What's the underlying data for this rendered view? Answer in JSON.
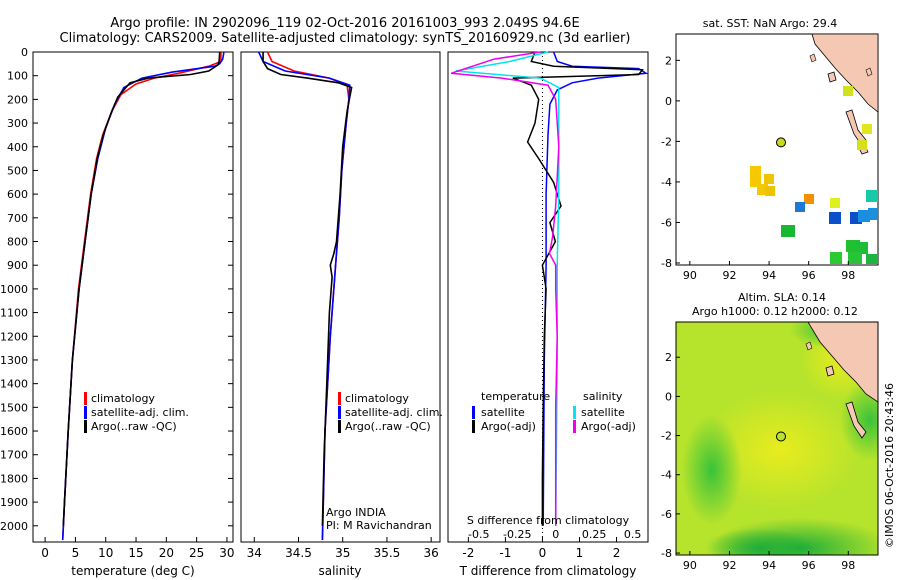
{
  "header": {
    "line1": "Argo profile: IN 2902096_119 02-Oct-2016 20161003_993 2.049S 94.6E",
    "line2": "Climatology: CARS2009. Satellite-adjusted climatology: synTS_20160929.nc (3d earlier)"
  },
  "colors": {
    "clim": "#ff0000",
    "sat": "#0000ff",
    "argo": "#000000",
    "sat_sal": "#00e5ee",
    "argo_sal": "#ee00ee"
  },
  "depth_ticks": [
    "0",
    "100",
    "200",
    "300",
    "400",
    "500",
    "600",
    "700",
    "800",
    "900",
    "1000",
    "1100",
    "1200",
    "1300",
    "1400",
    "1500",
    "1600",
    "1700",
    "1800",
    "1900",
    "2000"
  ],
  "chart_data": [
    {
      "type": "line",
      "name": "temperature",
      "xlabel": "temperature (deg C)",
      "ylabel": "depth",
      "xlim": [
        -2,
        31
      ],
      "ylim": [
        2060,
        0
      ],
      "xticks": [
        "0",
        "5",
        "10",
        "15",
        "20",
        "25",
        "30"
      ],
      "legend": [
        "climatology",
        "satellite-adj. clim.",
        "Argo(..raw -QC)"
      ],
      "series": [
        {
          "name": "climatology",
          "points": [
            [
              29,
              0
            ],
            [
              29,
              40
            ],
            [
              27,
              60
            ],
            [
              22,
              90
            ],
            [
              18,
              110
            ],
            [
              15,
              135
            ],
            [
              12.5,
              180
            ],
            [
              11,
              250
            ],
            [
              9.5,
              350
            ],
            [
              8.5,
              450
            ],
            [
              7.5,
              600
            ],
            [
              6.5,
              800
            ],
            [
              5.5,
              1000
            ],
            [
              4.5,
              1300
            ],
            [
              3.8,
              1600
            ],
            [
              3.2,
              1900
            ],
            [
              2.9,
              2060
            ]
          ]
        },
        {
          "name": "satellite-adj. clim.",
          "points": [
            [
              29.5,
              0
            ],
            [
              29.3,
              30
            ],
            [
              28.8,
              50
            ],
            [
              28,
              60
            ],
            [
              21,
              85
            ],
            [
              16,
              110
            ],
            [
              13,
              150
            ],
            [
              11.5,
              220
            ],
            [
              10,
              320
            ],
            [
              8.7,
              450
            ],
            [
              7.6,
              600
            ],
            [
              6.6,
              800
            ],
            [
              5.6,
              1000
            ],
            [
              4.5,
              1300
            ],
            [
              3.8,
              1600
            ],
            [
              3.2,
              1900
            ],
            [
              2.9,
              2060
            ]
          ]
        },
        {
          "name": "Argo(..raw -QC)",
          "points": [
            [
              28.8,
              0
            ],
            [
              28.7,
              40
            ],
            [
              28.5,
              55
            ],
            [
              27,
              80
            ],
            [
              24,
              95
            ],
            [
              17,
              110
            ],
            [
              14,
              130
            ],
            [
              12,
              190
            ],
            [
              11,
              250
            ],
            [
              9.6,
              350
            ],
            [
              8.6,
              450
            ],
            [
              7.6,
              600
            ],
            [
              6.6,
              800
            ],
            [
              5.6,
              1000
            ],
            [
              4.5,
              1300
            ],
            [
              3.8,
              1600
            ],
            [
              3.2,
              1900
            ],
            [
              3,
              2000
            ]
          ]
        }
      ]
    },
    {
      "type": "line",
      "name": "salinity",
      "xlabel": "salinity",
      "ylabel": "depth",
      "xlim": [
        33.85,
        36.1
      ],
      "ylim": [
        2060,
        0
      ],
      "xticks": [
        "34",
        "34.5",
        "35",
        "35.5",
        "36"
      ],
      "legend": [
        "climatology",
        "satellite-adj. clim.",
        "Argo(..raw -QC)"
      ],
      "annotation": [
        "Argo INDIA",
        "PI: M Ravichandran"
      ],
      "series": [
        {
          "name": "climatology",
          "points": [
            [
              34.15,
              0
            ],
            [
              34.2,
              40
            ],
            [
              34.45,
              80
            ],
            [
              34.85,
              110
            ],
            [
              35.05,
              140
            ],
            [
              35.07,
              200
            ],
            [
              35.04,
              300
            ],
            [
              34.99,
              500
            ],
            [
              34.96,
              700
            ],
            [
              34.92,
              900
            ],
            [
              34.86,
              1200
            ],
            [
              34.8,
              1600
            ],
            [
              34.77,
              2060
            ]
          ]
        },
        {
          "name": "satellite-adj. clim.",
          "points": [
            [
              34.05,
              0
            ],
            [
              34.1,
              40
            ],
            [
              34.35,
              80
            ],
            [
              34.85,
              110
            ],
            [
              35.08,
              140
            ],
            [
              35.07,
              200
            ],
            [
              35.04,
              300
            ],
            [
              34.99,
              500
            ],
            [
              34.96,
              700
            ],
            [
              34.92,
              900
            ],
            [
              34.86,
              1200
            ],
            [
              34.8,
              1600
            ],
            [
              34.77,
              2060
            ]
          ]
        },
        {
          "name": "Argo(..raw -QC)",
          "points": [
            [
              34.1,
              0
            ],
            [
              34.1,
              40
            ],
            [
              34.15,
              70
            ],
            [
              34.3,
              95
            ],
            [
              34.6,
              110
            ],
            [
              34.95,
              130
            ],
            [
              35.1,
              150
            ],
            [
              35.05,
              250
            ],
            [
              35.0,
              400
            ],
            [
              34.97,
              600
            ],
            [
              34.93,
              800
            ],
            [
              34.9,
              850
            ],
            [
              34.86,
              900
            ],
            [
              34.88,
              950
            ],
            [
              34.85,
              1100
            ],
            [
              34.82,
              1400
            ],
            [
              34.79,
              1700
            ],
            [
              34.77,
              2000
            ]
          ]
        }
      ]
    },
    {
      "type": "line",
      "name": "difference from climatology",
      "xlabel_top": "S difference from climatology",
      "xlabel": "T difference from climatology",
      "t_xlim": [
        -2.55,
        2.85
      ],
      "ylim": [
        2060,
        0
      ],
      "s_xlim": [
        -0.7,
        0.6
      ],
      "t_ticks": [
        "-2",
        "-1",
        "0",
        "1",
        "2"
      ],
      "s_ticks": [
        "-0.5",
        "-0.25",
        "0",
        "0.25",
        "0.5"
      ],
      "legend_headings": [
        "temperature",
        "salinity"
      ],
      "legend": [
        "satellite",
        "Argo(-adj)",
        "satellite",
        "Argo(-adj)"
      ],
      "series": [
        {
          "name": "temperature satellite",
          "axis": "T",
          "points": [
            [
              0.3,
              0
            ],
            [
              0.4,
              40
            ],
            [
              0.8,
              60
            ],
            [
              2.6,
              70
            ],
            [
              2.8,
              90
            ],
            [
              1.5,
              110
            ],
            [
              0.8,
              130
            ],
            [
              0.4,
              160
            ],
            [
              0.2,
              220
            ],
            [
              0.15,
              350
            ],
            [
              0.1,
              600
            ],
            [
              0.1,
              900
            ],
            [
              0.05,
              1300
            ],
            [
              0.02,
              2000
            ]
          ]
        },
        {
          "name": "temperature Argo(-adj)",
          "axis": "T",
          "points": [
            [
              -0.2,
              0
            ],
            [
              -0.3,
              40
            ],
            [
              0.3,
              60
            ],
            [
              2.7,
              75
            ],
            [
              2.6,
              95
            ],
            [
              -0.8,
              110
            ],
            [
              -0.3,
              140
            ],
            [
              -0.1,
              200
            ],
            [
              -0.2,
              300
            ],
            [
              -0.4,
              380
            ],
            [
              -0.1,
              450
            ],
            [
              0.3,
              550
            ],
            [
              0.5,
              650
            ],
            [
              0.2,
              720
            ],
            [
              0.35,
              800
            ],
            [
              0.0,
              900
            ],
            [
              0.1,
              1000
            ],
            [
              0.05,
              1200
            ],
            [
              0.02,
              1500
            ],
            [
              0.0,
              1800
            ],
            [
              0.0,
              2000
            ]
          ]
        },
        {
          "name": "salinity satellite",
          "axis": "S",
          "points": [
            [
              -0.05,
              0
            ],
            [
              -0.3,
              40
            ],
            [
              -0.65,
              80
            ],
            [
              -0.1,
              110
            ],
            [
              0.02,
              150
            ],
            [
              0.02,
              300
            ],
            [
              0.02,
              600
            ],
            [
              0.01,
              900
            ],
            [
              0.01,
              1300
            ],
            [
              0.0,
              2000
            ]
          ]
        },
        {
          "name": "salinity Argo(-adj)",
          "axis": "S",
          "points": [
            [
              -0.1,
              0
            ],
            [
              -0.4,
              30
            ],
            [
              -0.68,
              90
            ],
            [
              -0.35,
              110
            ],
            [
              -0.05,
              140
            ],
            [
              0.0,
              200
            ],
            [
              0.02,
              400
            ],
            [
              0.0,
              650
            ],
            [
              -0.02,
              780
            ],
            [
              -0.04,
              850
            ],
            [
              0.0,
              900
            ],
            [
              0.0,
              1000
            ],
            [
              0.01,
              1200
            ],
            [
              0.0,
              1500
            ],
            [
              0.0,
              2000
            ]
          ]
        }
      ]
    }
  ],
  "sst_map": {
    "title": "sat. SST: NaN Argo: 29.4",
    "xticks": [
      "90",
      "92",
      "94",
      "96",
      "98"
    ],
    "yticks": [
      "2",
      "0",
      "-2",
      "-4",
      "-6",
      "-8"
    ],
    "xlim": [
      89.3,
      99.5
    ],
    "ylim": [
      -8.1,
      3.3
    ],
    "argo_position": [
      94.6,
      -2.049
    ]
  },
  "sla_map": {
    "title1": "Altim. SLA: 0.14",
    "title2": "Argo h1000: 0.12 h2000: 0.12",
    "xticks": [
      "90",
      "92",
      "94",
      "96",
      "98"
    ],
    "yticks": [
      "2",
      "0",
      "-2",
      "-4",
      "-6",
      "-8"
    ],
    "xlim": [
      89.3,
      99.5
    ],
    "ylim": [
      -8.1,
      3.8
    ],
    "argo_position": [
      94.6,
      -2.049
    ]
  },
  "credit": "©IMOS 06-Oct-2016 20:43:46"
}
